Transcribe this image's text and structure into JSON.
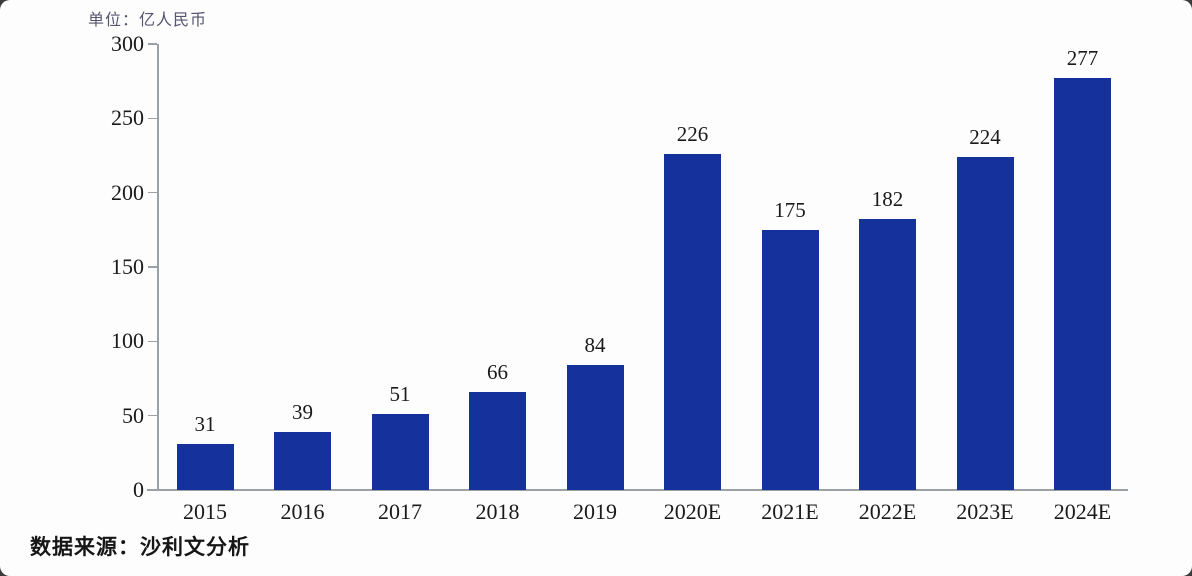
{
  "chart_data": {
    "type": "bar",
    "title": "",
    "unit_label": "单位：亿人民币",
    "categories": [
      "2015",
      "2016",
      "2017",
      "2018",
      "2019",
      "2020E",
      "2021E",
      "2022E",
      "2023E",
      "2024E"
    ],
    "values": [
      31,
      39,
      51,
      66,
      84,
      226,
      175,
      182,
      224,
      277
    ],
    "ylim": [
      0,
      300
    ],
    "yticks": [
      0,
      50,
      100,
      150,
      200,
      250,
      300
    ],
    "grid": false,
    "legend": "none",
    "bar_color": "#14319C",
    "axis_color": "#9aa0a8",
    "source": "数据来源：沙利文分析"
  }
}
